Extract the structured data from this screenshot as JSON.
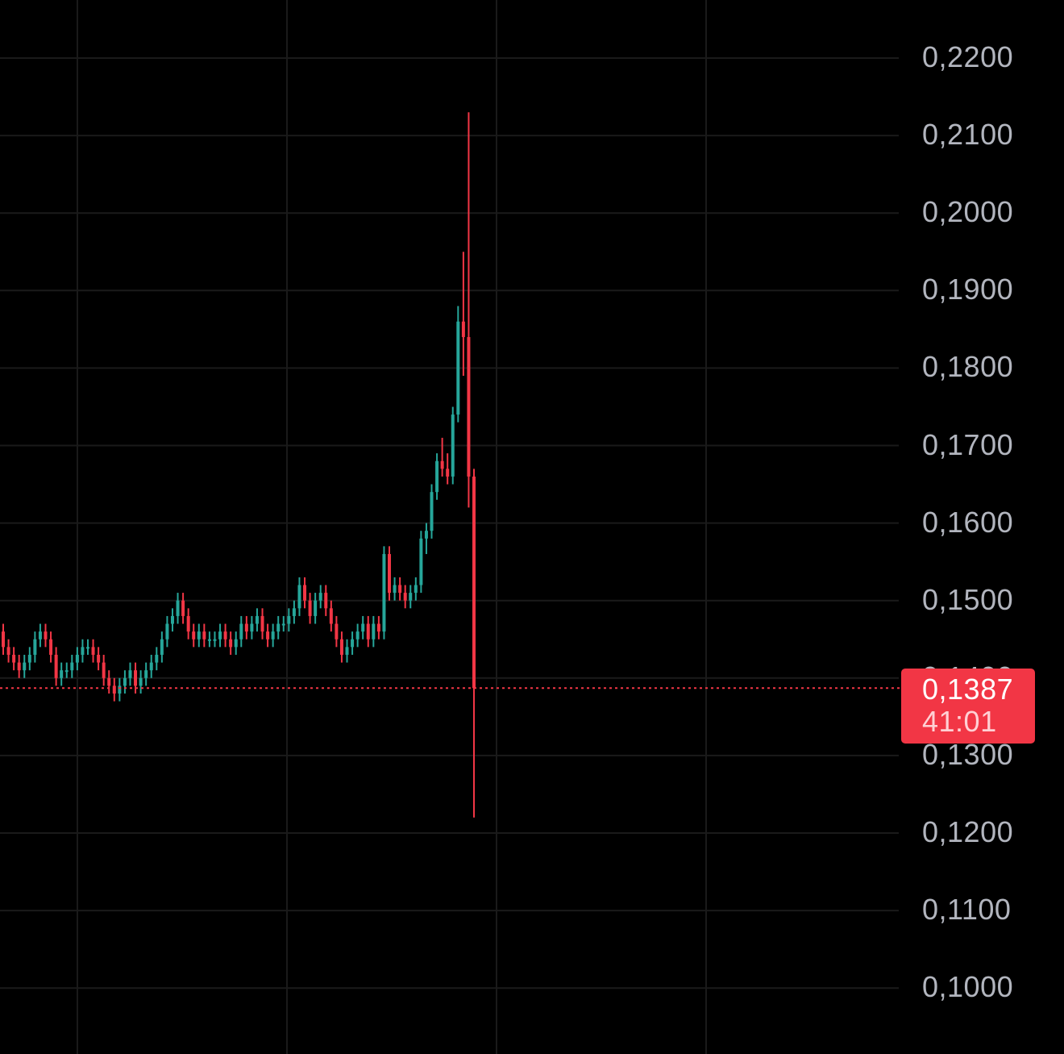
{
  "colors": {
    "background": "#000000",
    "grid": "#1a1a1a",
    "up": "#26a69a",
    "down": "#f23645",
    "axis_text": "#b2b5be",
    "price_line": "#f23645"
  },
  "last_price": {
    "value": "0,1387",
    "countdown": "41:01",
    "numeric": 0.1387
  },
  "chart_data": {
    "type": "candlestick",
    "title": "",
    "xlabel": "",
    "ylabel": "",
    "ylim": [
      0.1,
      0.22
    ],
    "grid": true,
    "y_tick_labels": [
      "0,2200",
      "0,2100",
      "0,2000",
      "0,1900",
      "0,1800",
      "0,1700",
      "0,1600",
      "0,1500",
      "0,1300",
      "0,1200",
      "0,1100",
      "0,1000"
    ],
    "y_tick_values": [
      0.22,
      0.21,
      0.2,
      0.19,
      0.18,
      0.17,
      0.16,
      0.15,
      0.13,
      0.12,
      0.11,
      0.1
    ],
    "hidden_tick": {
      "label": "0,1400",
      "value": 0.14
    },
    "candles": [
      [
        0.146,
        0.147,
        0.143,
        0.144
      ],
      [
        0.144,
        0.145,
        0.142,
        0.143
      ],
      [
        0.143,
        0.144,
        0.141,
        0.142
      ],
      [
        0.142,
        0.143,
        0.14,
        0.141
      ],
      [
        0.141,
        0.143,
        0.14,
        0.142
      ],
      [
        0.142,
        0.144,
        0.141,
        0.143
      ],
      [
        0.143,
        0.146,
        0.142,
        0.145
      ],
      [
        0.145,
        0.147,
        0.144,
        0.146
      ],
      [
        0.146,
        0.147,
        0.144,
        0.145
      ],
      [
        0.145,
        0.146,
        0.142,
        0.143
      ],
      [
        0.143,
        0.144,
        0.139,
        0.14
      ],
      [
        0.14,
        0.142,
        0.139,
        0.141
      ],
      [
        0.141,
        0.142,
        0.14,
        0.141
      ],
      [
        0.141,
        0.143,
        0.14,
        0.142
      ],
      [
        0.142,
        0.144,
        0.141,
        0.143
      ],
      [
        0.143,
        0.145,
        0.142,
        0.144
      ],
      [
        0.144,
        0.145,
        0.143,
        0.144
      ],
      [
        0.144,
        0.145,
        0.142,
        0.143
      ],
      [
        0.143,
        0.144,
        0.141,
        0.142
      ],
      [
        0.142,
        0.143,
        0.139,
        0.14
      ],
      [
        0.14,
        0.141,
        0.138,
        0.139
      ],
      [
        0.139,
        0.14,
        0.137,
        0.138
      ],
      [
        0.138,
        0.14,
        0.137,
        0.139
      ],
      [
        0.139,
        0.141,
        0.138,
        0.14
      ],
      [
        0.14,
        0.142,
        0.139,
        0.141
      ],
      [
        0.141,
        0.142,
        0.138,
        0.139
      ],
      [
        0.139,
        0.141,
        0.138,
        0.14
      ],
      [
        0.14,
        0.142,
        0.139,
        0.141
      ],
      [
        0.141,
        0.143,
        0.14,
        0.142
      ],
      [
        0.142,
        0.144,
        0.141,
        0.143
      ],
      [
        0.143,
        0.146,
        0.142,
        0.145
      ],
      [
        0.145,
        0.148,
        0.144,
        0.147
      ],
      [
        0.147,
        0.149,
        0.146,
        0.148
      ],
      [
        0.148,
        0.151,
        0.147,
        0.15
      ],
      [
        0.15,
        0.151,
        0.147,
        0.148
      ],
      [
        0.148,
        0.149,
        0.145,
        0.146
      ],
      [
        0.146,
        0.147,
        0.144,
        0.145
      ],
      [
        0.145,
        0.147,
        0.144,
        0.146
      ],
      [
        0.146,
        0.147,
        0.144,
        0.145
      ],
      [
        0.145,
        0.146,
        0.144,
        0.145
      ],
      [
        0.145,
        0.146,
        0.144,
        0.145
      ],
      [
        0.145,
        0.147,
        0.144,
        0.146
      ],
      [
        0.146,
        0.147,
        0.144,
        0.145
      ],
      [
        0.145,
        0.146,
        0.143,
        0.144
      ],
      [
        0.144,
        0.146,
        0.143,
        0.145
      ],
      [
        0.145,
        0.148,
        0.144,
        0.147
      ],
      [
        0.147,
        0.148,
        0.145,
        0.146
      ],
      [
        0.146,
        0.148,
        0.145,
        0.147
      ],
      [
        0.147,
        0.149,
        0.146,
        0.148
      ],
      [
        0.148,
        0.149,
        0.145,
        0.146
      ],
      [
        0.146,
        0.147,
        0.144,
        0.145
      ],
      [
        0.145,
        0.147,
        0.144,
        0.146
      ],
      [
        0.146,
        0.148,
        0.145,
        0.147
      ],
      [
        0.147,
        0.148,
        0.146,
        0.147
      ],
      [
        0.147,
        0.149,
        0.146,
        0.148
      ],
      [
        0.148,
        0.15,
        0.147,
        0.149
      ],
      [
        0.149,
        0.153,
        0.148,
        0.152
      ],
      [
        0.152,
        0.153,
        0.149,
        0.15
      ],
      [
        0.15,
        0.151,
        0.147,
        0.148
      ],
      [
        0.148,
        0.151,
        0.147,
        0.15
      ],
      [
        0.15,
        0.152,
        0.149,
        0.151
      ],
      [
        0.151,
        0.152,
        0.148,
        0.149
      ],
      [
        0.149,
        0.15,
        0.146,
        0.147
      ],
      [
        0.147,
        0.148,
        0.144,
        0.145
      ],
      [
        0.145,
        0.146,
        0.142,
        0.143
      ],
      [
        0.143,
        0.145,
        0.142,
        0.144
      ],
      [
        0.144,
        0.146,
        0.143,
        0.145
      ],
      [
        0.145,
        0.147,
        0.144,
        0.146
      ],
      [
        0.146,
        0.148,
        0.145,
        0.147
      ],
      [
        0.147,
        0.148,
        0.144,
        0.145
      ],
      [
        0.145,
        0.148,
        0.144,
        0.147
      ],
      [
        0.147,
        0.148,
        0.145,
        0.146
      ],
      [
        0.146,
        0.157,
        0.145,
        0.156
      ],
      [
        0.156,
        0.157,
        0.15,
        0.151
      ],
      [
        0.151,
        0.153,
        0.15,
        0.152
      ],
      [
        0.152,
        0.153,
        0.15,
        0.151
      ],
      [
        0.151,
        0.152,
        0.149,
        0.15
      ],
      [
        0.15,
        0.152,
        0.149,
        0.151
      ],
      [
        0.151,
        0.153,
        0.15,
        0.152
      ],
      [
        0.152,
        0.159,
        0.151,
        0.158
      ],
      [
        0.158,
        0.16,
        0.156,
        0.159
      ],
      [
        0.159,
        0.165,
        0.158,
        0.164
      ],
      [
        0.164,
        0.169,
        0.163,
        0.168
      ],
      [
        0.168,
        0.171,
        0.166,
        0.167
      ],
      [
        0.167,
        0.169,
        0.165,
        0.166
      ],
      [
        0.166,
        0.175,
        0.165,
        0.174
      ],
      [
        0.174,
        0.188,
        0.173,
        0.186
      ],
      [
        0.186,
        0.195,
        0.179,
        0.184
      ],
      [
        0.184,
        0.213,
        0.162,
        0.166
      ],
      [
        0.166,
        0.167,
        0.122,
        0.1387
      ]
    ]
  }
}
